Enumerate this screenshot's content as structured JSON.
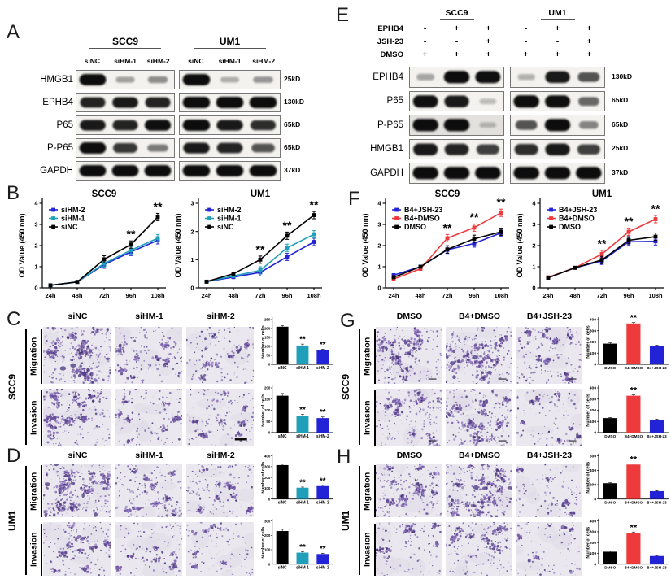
{
  "colors": {
    "black": "#000000",
    "blue": "#2222d6",
    "teal": "#209fba",
    "red": "#ee3a3c",
    "band": "#0a0a0a",
    "blot_bg": "#f3f2ef",
    "micro_bg": "#eae7ee",
    "dot_palette": [
      "#6c51a1",
      "#7f63b4",
      "#59428c",
      "#9480c2",
      "#4a3878"
    ]
  },
  "panel_labels": {
    "A": "A",
    "B": "B",
    "C": "C",
    "D": "D",
    "E": "E",
    "F": "F",
    "G": "G",
    "H": "H"
  },
  "western_blots": {
    "A": {
      "groups": [
        "SCC9",
        "UM1"
      ],
      "lane_labels": [
        "siNC",
        "siHM-1",
        "siHM-2"
      ],
      "rows": [
        {
          "protein": "HMGB1",
          "size": "25kD",
          "lanes": [
            [
              1,
              0.2,
              0.3
            ],
            [
              1,
              0.14,
              0.26
            ]
          ]
        },
        {
          "protein": "EPHB4",
          "size": "130kD",
          "lanes": [
            [
              0.85,
              0.9,
              0.85
            ],
            [
              1,
              1,
              1
            ]
          ]
        },
        {
          "protein": "P65",
          "size": "65kD",
          "lanes": [
            [
              0.9,
              0.85,
              0.95
            ],
            [
              1,
              0.9,
              0.8
            ]
          ]
        },
        {
          "protein": "P-P65",
          "size": "65kD",
          "lanes": [
            [
              1,
              0.75,
              0.4
            ],
            [
              0.9,
              0.85,
              0.6
            ]
          ]
        },
        {
          "protein": "GAPDH",
          "size": "37kD",
          "lanes": [
            [
              1,
              1,
              1
            ],
            [
              1,
              1,
              1
            ]
          ]
        }
      ]
    },
    "E": {
      "groups": [
        "SCC9",
        "UM1"
      ],
      "treatments": [
        {
          "name": "EPHB4",
          "marks": [
            "-",
            "+",
            "+",
            "-",
            "+",
            "+"
          ]
        },
        {
          "name": "JSH-23",
          "marks": [
            "-",
            "-",
            "+",
            "-",
            "-",
            "+"
          ]
        },
        {
          "name": "DMSO",
          "marks": [
            "+",
            "+",
            "+",
            "+",
            "+",
            "+"
          ]
        }
      ],
      "rows": [
        {
          "protein": "EPHB4",
          "size": "130kD",
          "lanes": [
            [
              0.18,
              1,
              0.95
            ],
            [
              0.12,
              0.9,
              0.6
            ]
          ]
        },
        {
          "protein": "P65",
          "size": "65kD",
          "lanes": [
            [
              0.95,
              0.9,
              0.06
            ],
            [
              1,
              0.95,
              0.5
            ]
          ]
        },
        {
          "protein": "P-P65",
          "size": "65kD",
          "lanes": [
            [
              1,
              1,
              0.05
            ],
            [
              0.6,
              1,
              0.35
            ]
          ],
          "bg": [
            "#e3e1de",
            null
          ]
        },
        {
          "protein": "HMGB1",
          "size": "25kD",
          "lanes": [
            [
              0.9,
              0.85,
              0.7
            ],
            [
              0.8,
              0.9,
              0.7
            ]
          ]
        },
        {
          "protein": "GAPDH",
          "size": "37kD",
          "lanes": [
            [
              1,
              1,
              1
            ],
            [
              1,
              1,
              1
            ]
          ]
        }
      ]
    }
  },
  "chart_data": [
    {
      "id": "B-SCC9",
      "type": "line",
      "title": "SCC9",
      "ylabel": "OD Value (450 nm)",
      "xlabel": "",
      "ylim": [
        0,
        4
      ],
      "yticks": [
        0,
        1,
        2,
        3,
        4
      ],
      "x": [
        "24h",
        "48h",
        "72h",
        "96h",
        "108h"
      ],
      "series": [
        {
          "name": "siHM-2",
          "color": "blue",
          "values": [
            0.12,
            0.28,
            1.1,
            1.7,
            2.25
          ]
        },
        {
          "name": "siHM-1",
          "color": "teal",
          "values": [
            0.12,
            0.28,
            1.15,
            1.78,
            2.35
          ]
        },
        {
          "name": "siNC",
          "color": "black",
          "values": [
            0.12,
            0.28,
            1.35,
            2.05,
            3.35
          ]
        }
      ],
      "sig": [
        {
          "x": "96h",
          "label": "**"
        },
        {
          "x": "108h",
          "label": "**"
        }
      ],
      "legend_position": "top-left"
    },
    {
      "id": "B-UM1",
      "type": "line",
      "title": "UM1",
      "ylabel": "OD Value (450 nm)",
      "xlabel": "",
      "ylim": [
        0,
        3
      ],
      "yticks": [
        0,
        1,
        2,
        3
      ],
      "x": [
        "24h",
        "48h",
        "72h",
        "96h",
        "108h"
      ],
      "series": [
        {
          "name": "siHM-2",
          "color": "blue",
          "values": [
            0.22,
            0.38,
            0.55,
            1.1,
            1.63
          ]
        },
        {
          "name": "siHM-1",
          "color": "teal",
          "values": [
            0.22,
            0.42,
            0.62,
            1.42,
            1.9
          ]
        },
        {
          "name": "siNC",
          "color": "black",
          "values": [
            0.22,
            0.5,
            1.0,
            1.85,
            2.58
          ]
        }
      ],
      "sig": [
        {
          "x": "72h",
          "label": "**"
        },
        {
          "x": "96h",
          "label": "**"
        },
        {
          "x": "108h",
          "label": "**"
        }
      ],
      "legend_position": "top-left"
    },
    {
      "id": "F-SCC9",
      "type": "line",
      "title": "SCC9",
      "ylabel": "OD Value (450 nm)",
      "xlabel": "",
      "ylim": [
        0,
        4
      ],
      "yticks": [
        0,
        1,
        2,
        3,
        4
      ],
      "x": [
        "24h",
        "48h",
        "72h",
        "96h",
        "108h"
      ],
      "series": [
        {
          "name": "B4+JSH-23",
          "color": "blue",
          "values": [
            0.6,
            1.0,
            1.8,
            2.1,
            2.6
          ]
        },
        {
          "name": "B4+DMSO",
          "color": "red",
          "values": [
            0.42,
            0.9,
            2.35,
            2.85,
            3.55
          ]
        },
        {
          "name": "DMSO",
          "color": "black",
          "values": [
            0.5,
            1.0,
            1.82,
            2.32,
            2.65
          ]
        }
      ],
      "sig": [
        {
          "x": "72h",
          "label": "**"
        },
        {
          "x": "96h",
          "label": "**"
        },
        {
          "x": "108h",
          "label": "**"
        }
      ],
      "legend_position": "top-left"
    },
    {
      "id": "F-UM1",
      "type": "line",
      "title": "UM1",
      "ylabel": "OD Value (450 nm)",
      "xlabel": "",
      "ylim": [
        0,
        4
      ],
      "yticks": [
        0,
        1,
        2,
        3,
        4
      ],
      "x": [
        "24h",
        "48h",
        "72h",
        "96h",
        "108h"
      ],
      "series": [
        {
          "name": "B4+JSH-23",
          "color": "blue",
          "values": [
            0.48,
            0.95,
            1.28,
            2.18,
            2.2
          ]
        },
        {
          "name": "B4+DMSO",
          "color": "red",
          "values": [
            0.5,
            0.95,
            1.6,
            2.65,
            3.25
          ]
        },
        {
          "name": "DMSO",
          "color": "black",
          "values": [
            0.48,
            0.95,
            1.32,
            2.25,
            2.42
          ]
        }
      ],
      "sig": [
        {
          "x": "72h",
          "label": "**"
        },
        {
          "x": "96h",
          "label": "**"
        },
        {
          "x": "108h",
          "label": "**"
        }
      ],
      "legend_position": "top-left"
    },
    {
      "id": "C-migration",
      "type": "bar",
      "ylabel": "Number of cells",
      "categories": [
        "siNC",
        "siHM-1",
        "siHM-2"
      ],
      "values": [
        210,
        105,
        80
      ],
      "errors": [
        6,
        8,
        5
      ],
      "bar_colors": [
        "black",
        "teal",
        "blue"
      ],
      "ylim": [
        0,
        250
      ],
      "yticks": [
        0,
        50,
        100,
        150,
        200,
        250
      ],
      "sig": [
        "",
        "**",
        "**"
      ]
    },
    {
      "id": "C-invasion",
      "type": "bar",
      "ylabel": "Number of cells",
      "categories": [
        "siNC",
        "siHM-1",
        "siHM-2"
      ],
      "values": [
        165,
        75,
        65
      ],
      "errors": [
        10,
        7,
        5
      ],
      "bar_colors": [
        "black",
        "teal",
        "blue"
      ],
      "ylim": [
        0,
        200
      ],
      "yticks": [
        0,
        50,
        100,
        150,
        200
      ],
      "sig": [
        "",
        "**",
        "**"
      ]
    },
    {
      "id": "D-migration",
      "type": "bar",
      "ylabel": "Number of cells",
      "categories": [
        "siNC",
        "siHM-1",
        "siHM-2"
      ],
      "values": [
        315,
        105,
        120
      ],
      "errors": [
        8,
        6,
        7
      ],
      "bar_colors": [
        "black",
        "teal",
        "blue"
      ],
      "ylim": [
        0,
        400
      ],
      "yticks": [
        0,
        100,
        200,
        300,
        400
      ],
      "sig": [
        "",
        "**",
        "**"
      ]
    },
    {
      "id": "D-invasion",
      "type": "bar",
      "ylabel": "Number of cells",
      "categories": [
        "siNC",
        "siHM-1",
        "siHM-2"
      ],
      "values": [
        230,
        80,
        70
      ],
      "errors": [
        12,
        6,
        5
      ],
      "bar_colors": [
        "black",
        "teal",
        "blue"
      ],
      "ylim": [
        0,
        300
      ],
      "yticks": [
        0,
        100,
        200,
        300
      ],
      "sig": [
        "",
        "**",
        "**"
      ]
    },
    {
      "id": "G-migration",
      "type": "bar",
      "ylabel": "Number of cells",
      "categories": [
        "DMSO",
        "B4+DMSO",
        "B4+JSH-23"
      ],
      "values": [
        185,
        365,
        165
      ],
      "errors": [
        7,
        8,
        6
      ],
      "bar_colors": [
        "black",
        "red",
        "blue"
      ],
      "ylim": [
        0,
        400
      ],
      "yticks": [
        0,
        100,
        200,
        300,
        400
      ],
      "sig": [
        "",
        "**",
        ""
      ]
    },
    {
      "id": "G-invasion",
      "type": "bar",
      "ylabel": "Number of cells",
      "categories": [
        "DMSO",
        "B4+DMSO",
        "B4+JSH-23"
      ],
      "values": [
        130,
        330,
        115
      ],
      "errors": [
        5,
        8,
        6
      ],
      "bar_colors": [
        "black",
        "red",
        "blue"
      ],
      "ylim": [
        0,
        400
      ],
      "yticks": [
        0,
        100,
        200,
        300,
        400
      ],
      "sig": [
        "",
        "**",
        ""
      ]
    },
    {
      "id": "H-migration",
      "type": "bar",
      "ylabel": "Number of cells",
      "categories": [
        "DMSO",
        "B4+DMSO",
        "B4+JSH-23"
      ],
      "values": [
        220,
        480,
        110
      ],
      "errors": [
        8,
        10,
        6
      ],
      "bar_colors": [
        "black",
        "red",
        "blue"
      ],
      "ylim": [
        0,
        600
      ],
      "yticks": [
        0,
        200,
        400,
        600
      ],
      "sig": [
        "",
        "**",
        ""
      ]
    },
    {
      "id": "H-invasion",
      "type": "bar",
      "ylabel": "Number of cells",
      "categories": [
        "DMSO",
        "B4+DMSO",
        "B4+JSH-23"
      ],
      "values": [
        115,
        290,
        75
      ],
      "errors": [
        6,
        8,
        5
      ],
      "bar_colors": [
        "black",
        "red",
        "blue"
      ],
      "ylim": [
        0,
        400
      ],
      "yticks": [
        0,
        100,
        200,
        300,
        400
      ],
      "sig": [
        "",
        "**",
        ""
      ]
    }
  ],
  "transwell_panels": [
    {
      "id": "C",
      "cell_line": "SCC9",
      "row_labels": [
        "Migration",
        "Invasion"
      ],
      "columns": [
        "siNC",
        "siHM-1",
        "siHM-2"
      ],
      "densities": [
        [
          0.95,
          0.5,
          0.42
        ],
        [
          0.85,
          0.4,
          0.45
        ]
      ],
      "charts": [
        "C-migration",
        "C-invasion"
      ],
      "scalebar_cells": [
        [
          1,
          2
        ]
      ],
      "small_bars": false
    },
    {
      "id": "D",
      "cell_line": "UM1",
      "row_labels": [
        "Migration",
        "Invasion"
      ],
      "columns": [
        "siNC",
        "siHM-1",
        "siHM-2"
      ],
      "densities": [
        [
          1.0,
          0.55,
          0.5
        ],
        [
          0.6,
          0.35,
          0.3
        ]
      ],
      "charts": [
        "D-migration",
        "D-invasion"
      ],
      "scalebar_cells": [],
      "small_bars": false
    },
    {
      "id": "G",
      "cell_line": "SCC9",
      "row_labels": [
        "Migration",
        "Invasion"
      ],
      "columns": [
        "DMSO",
        "B4+DMSO",
        "B4+JSH-23"
      ],
      "densities": [
        [
          0.8,
          0.95,
          0.55
        ],
        [
          0.65,
          0.85,
          0.3
        ]
      ],
      "charts": [
        "G-migration",
        "G-invasion"
      ],
      "scalebar_cells": [],
      "small_bars": true
    },
    {
      "id": "H",
      "cell_line": "UM1",
      "row_labels": [
        "Migration",
        "Invasion"
      ],
      "columns": [
        "DMSO",
        "B4+DMSO",
        "B4+JSH-23"
      ],
      "densities": [
        [
          0.75,
          1.0,
          0.25
        ],
        [
          0.35,
          0.65,
          0.22
        ]
      ],
      "charts": [
        "H-migration",
        "H-invasion"
      ],
      "scalebar_cells": [],
      "small_bars": false
    }
  ]
}
